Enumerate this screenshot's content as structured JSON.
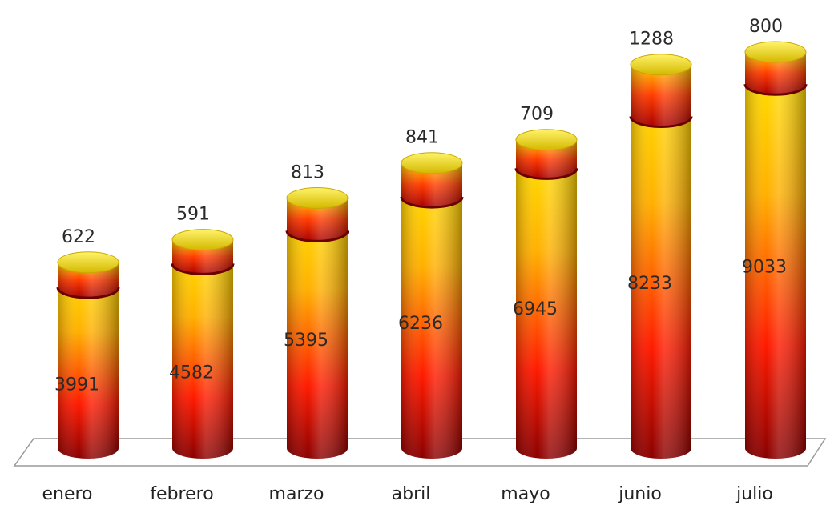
{
  "chart_data": {
    "type": "bar",
    "stacked": true,
    "categories": [
      "enero",
      "febrero",
      "marzo",
      "abril",
      "mayo",
      "junio",
      "julio"
    ],
    "series": [
      {
        "values": [
          3991,
          4582,
          5395,
          6236,
          6945,
          8233,
          9033
        ]
      },
      {
        "values": [
          622,
          591,
          813,
          841,
          709,
          1288,
          800
        ]
      }
    ],
    "grid": false,
    "legend": "none",
    "title": "",
    "xlabel": "",
    "ylabel": ""
  },
  "colors": {
    "gradient_top": "#ffe600",
    "gradient_mid": "#ffb000",
    "gradient_low": "#ff1a00",
    "gradient_bottom": "#8a0000",
    "cap_top": "#e8d000",
    "band": "#c00000",
    "floor_stroke": "#9a9a9a",
    "text": "#222222"
  }
}
